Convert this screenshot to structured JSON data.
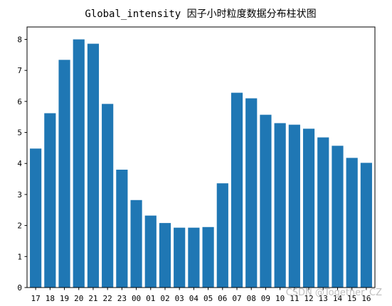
{
  "chart_data": {
    "type": "bar",
    "title": "Global_intensity 因子小时粒度数据分布柱状图",
    "xlabel": "",
    "ylabel": "",
    "ylim": [
      0,
      8.4
    ],
    "yticks": [
      0,
      1,
      2,
      3,
      4,
      5,
      6,
      7,
      8
    ],
    "categories": [
      "17",
      "18",
      "19",
      "20",
      "21",
      "22",
      "23",
      "00",
      "01",
      "02",
      "03",
      "04",
      "05",
      "06",
      "07",
      "08",
      "09",
      "10",
      "11",
      "12",
      "13",
      "14",
      "15",
      "16"
    ],
    "values": [
      4.48,
      5.62,
      7.34,
      8.0,
      7.86,
      5.92,
      3.8,
      2.82,
      2.32,
      2.08,
      1.93,
      1.93,
      1.95,
      3.36,
      6.28,
      6.1,
      5.57,
      5.3,
      5.25,
      5.12,
      4.84,
      4.57,
      4.18,
      4.02
    ],
    "bar_color": "#1f77b4",
    "grid": false,
    "legend": "none"
  },
  "watermark": "CSDN @Together_CZ"
}
